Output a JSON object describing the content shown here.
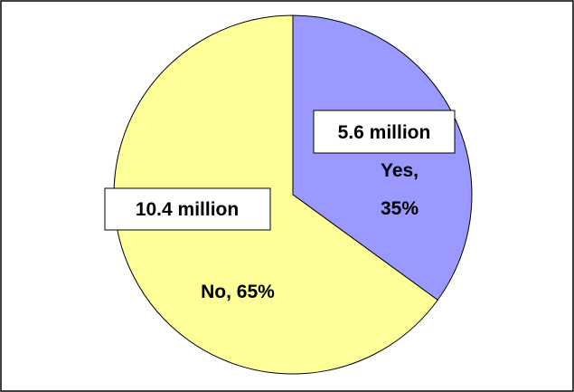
{
  "chart_data": {
    "type": "pie",
    "categories": [
      "Yes",
      "No"
    ],
    "values": [
      35,
      65
    ],
    "colors": [
      "#9999ff",
      "#ffff99"
    ],
    "slice_labels": [
      {
        "line1": "Yes,",
        "line2": "35%"
      },
      {
        "line1": "No, 65%",
        "line2": ""
      }
    ],
    "value_callouts": [
      "5.6 million",
      "10.4 million"
    ],
    "title": "",
    "legend": "none"
  }
}
